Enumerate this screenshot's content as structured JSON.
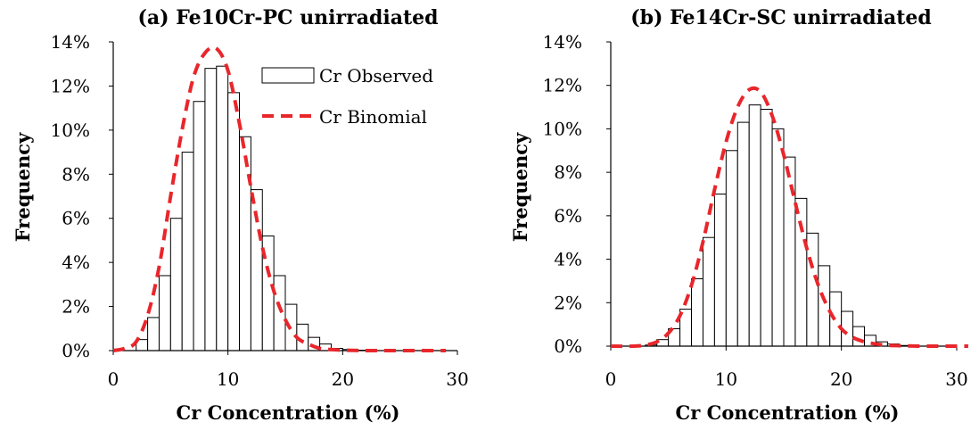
{
  "chart_data": [
    {
      "type": "bar",
      "title": "(a) Fe10Cr-PC unirradiated",
      "xlabel": "Cr Concentration (%)",
      "ylabel": "Frequency",
      "xlim": [
        0,
        30
      ],
      "ylim": [
        0,
        0.14
      ],
      "xticks": [
        "0",
        "10",
        "20",
        "30"
      ],
      "yticks": [
        "0%",
        "2%",
        "4%",
        "6%",
        "8%",
        "10%",
        "12%",
        "14%"
      ],
      "bin_width": 1,
      "series": [
        {
          "name": "Cr Observed",
          "kind": "histogram",
          "color": "#000000",
          "bins": [
            0,
            1,
            2,
            3,
            4,
            5,
            6,
            7,
            8,
            9,
            10,
            11,
            12,
            13,
            14,
            15,
            16,
            17,
            18,
            19,
            20,
            21,
            22,
            23,
            24,
            25,
            26,
            27,
            28,
            29
          ],
          "values": [
            0.0,
            0.0,
            0.005,
            0.015,
            0.034,
            0.06,
            0.09,
            0.113,
            0.128,
            0.129,
            0.117,
            0.097,
            0.073,
            0.052,
            0.034,
            0.021,
            0.012,
            0.006,
            0.003,
            0.001,
            0.0005,
            0.0002,
            0,
            0,
            0,
            0,
            0,
            0,
            0,
            0
          ]
        },
        {
          "name": "Cr Binomial",
          "kind": "line",
          "style": "dashed",
          "color": "#e8262b",
          "x": [
            0,
            1,
            2,
            3,
            4,
            5,
            6,
            7,
            8,
            9,
            10,
            11,
            12,
            13,
            14,
            15,
            16,
            17,
            18,
            19,
            20,
            22,
            25,
            29
          ],
          "y": [
            0.0,
            0.001,
            0.004,
            0.016,
            0.038,
            0.07,
            0.1,
            0.124,
            0.135,
            0.137,
            0.127,
            0.103,
            0.074,
            0.047,
            0.027,
            0.014,
            0.006,
            0.003,
            0.001,
            0.0005,
            0.0002,
            0,
            0,
            0
          ]
        }
      ],
      "legend": {
        "position": "top-right",
        "entries": [
          "Cr Observed",
          "Cr Binomial"
        ]
      }
    },
    {
      "type": "bar",
      "title": "(b) Fe14Cr-SC unirradiated",
      "xlabel": "Cr Concentration (%)",
      "ylabel": "Frequency",
      "xlim": [
        0,
        30
      ],
      "ylim": [
        0,
        0.14
      ],
      "xticks": [
        "0",
        "10",
        "20",
        "30"
      ],
      "yticks": [
        "0%",
        "2%",
        "4%",
        "6%",
        "8%",
        "10%",
        "12%",
        "14%"
      ],
      "bin_width": 1,
      "series": [
        {
          "name": "Cr Observed",
          "kind": "histogram",
          "color": "#000000",
          "bins": [
            0,
            1,
            2,
            3,
            4,
            5,
            6,
            7,
            8,
            9,
            10,
            11,
            12,
            13,
            14,
            15,
            16,
            17,
            18,
            19,
            20,
            21,
            22,
            23,
            24,
            25,
            26,
            27,
            28,
            29,
            30
          ],
          "values": [
            0,
            0,
            0,
            0.0005,
            0.003,
            0.008,
            0.017,
            0.031,
            0.05,
            0.07,
            0.09,
            0.103,
            0.111,
            0.109,
            0.1,
            0.087,
            0.068,
            0.052,
            0.037,
            0.025,
            0.016,
            0.009,
            0.005,
            0.002,
            0.001,
            0.0003,
            0,
            0,
            0,
            0,
            0
          ]
        },
        {
          "name": "Cr Binomial",
          "kind": "line",
          "style": "dashed",
          "color": "#e8262b",
          "x": [
            0,
            2,
            3,
            4,
            5,
            6,
            7,
            8,
            9,
            10,
            11,
            12,
            13,
            14,
            15,
            16,
            17,
            18,
            19,
            20,
            21,
            22,
            23,
            24,
            25,
            27,
            30,
            31
          ],
          "y": [
            0,
            0,
            0.0005,
            0.002,
            0.006,
            0.014,
            0.028,
            0.048,
            0.072,
            0.094,
            0.11,
            0.118,
            0.117,
            0.106,
            0.088,
            0.066,
            0.045,
            0.028,
            0.016,
            0.008,
            0.004,
            0.002,
            0.001,
            0.0004,
            0.0002,
            0,
            0,
            0
          ]
        }
      ]
    }
  ]
}
